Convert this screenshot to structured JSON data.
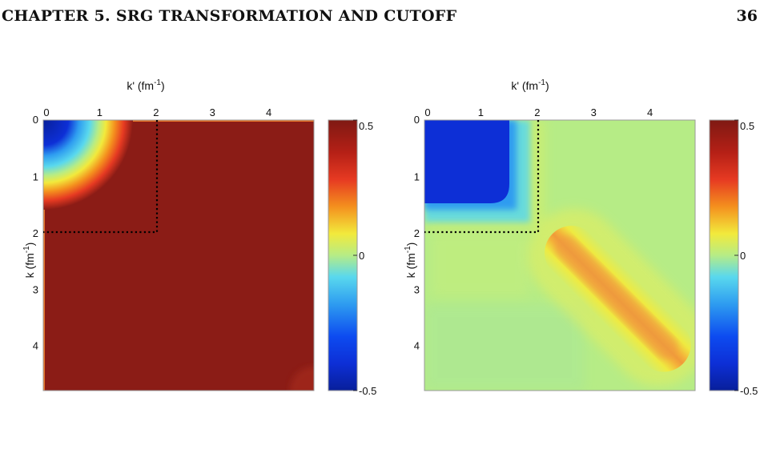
{
  "header": {
    "chapter_title": "CHAPTER 5.  SRG TRANSFORMATION AND CUTOFF",
    "page_number": "36"
  },
  "colors": {
    "dark_red": "#8b1c16",
    "red": "#e63a22",
    "orange": "#f4901e",
    "yellow": "#f2ea3c",
    "light_green": "#b6ec86",
    "cyan": "#59d8ee",
    "light_blue": "#2e9cf0",
    "blue": "#0d2fd6",
    "dark_blue": "#081f9a"
  },
  "chart_data": [
    {
      "type": "heatmap",
      "panel": "left",
      "xlabel": "k' (fm",
      "xlabel_sup": "-1",
      "xlabel_close": ")",
      "ylabel": "k (fm",
      "ylabel_sup": "-1",
      "ylabel_close": ")",
      "x_ticks": [
        "0",
        "1",
        "2",
        "3",
        "4"
      ],
      "y_ticks": [
        "0",
        "1",
        "2",
        "3",
        "4"
      ],
      "xlim": [
        0,
        4.8
      ],
      "ylim": [
        0,
        4.8
      ],
      "colorbar": {
        "ticks": [
          "0.5",
          "0",
          "-0.5"
        ],
        "range": [
          -0.5,
          0.5
        ]
      },
      "cutoff": 2.1,
      "features": {
        "background_value": 0.5,
        "low_momentum_peak_value": -0.5,
        "low_momentum_radius": 1.5
      }
    },
    {
      "type": "heatmap",
      "panel": "right",
      "xlabel": "k' (fm",
      "xlabel_sup": "-1",
      "xlabel_close": ")",
      "ylabel": "k (fm",
      "ylabel_sup": "-1",
      "ylabel_close": ")",
      "x_ticks": [
        "0",
        "1",
        "2",
        "3",
        "4"
      ],
      "y_ticks": [
        "0",
        "1",
        "2",
        "3",
        "4"
      ],
      "xlim": [
        0,
        4.8
      ],
      "ylim": [
        0,
        4.8
      ],
      "colorbar": {
        "ticks": [
          "0.5",
          "0",
          "-0.5"
        ],
        "range": [
          -0.5,
          0.5
        ]
      },
      "cutoff": 2.1,
      "features": {
        "background_value": 0.05,
        "low_momentum_peak_value": -0.5,
        "diagonal_band_value": 0.25,
        "diagonal_band_range": [
          2.3,
          4.7
        ]
      }
    }
  ]
}
